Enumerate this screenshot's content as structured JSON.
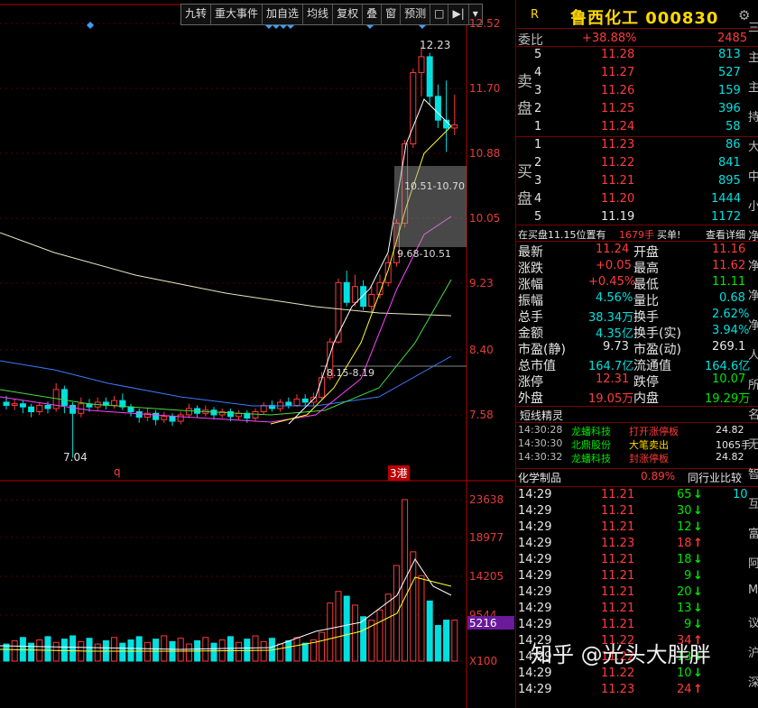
{
  "toolbar": {
    "buttons": [
      "九转",
      "重大事件",
      "加自选",
      "均线",
      "复权",
      "叠",
      "窗",
      "预测"
    ]
  },
  "price_axis": [
    "12.52",
    "11.70",
    "10.88",
    "10.05",
    "9.23",
    "8.40",
    "7.58"
  ],
  "volume_axis": [
    "23638",
    "18977",
    "14205",
    "9544",
    "5216",
    "X100"
  ],
  "annotations": {
    "high": "12.23",
    "low": "7.04",
    "range1": "10.51-10.70",
    "range2": "9.68-10.51",
    "range3": "8.15-8.19",
    "marker_q": "q",
    "marker_gang": "3港"
  },
  "stock": {
    "badge": "R",
    "name": "鲁西化工",
    "code": "000830"
  },
  "weibi": {
    "label": "委比",
    "pct": "+38.88%",
    "value": "2485"
  },
  "sell": {
    "label1": "卖",
    "label2": "盘",
    "rows": [
      {
        "lvl": "5",
        "price": "11.28",
        "vol": "813"
      },
      {
        "lvl": "4",
        "price": "11.27",
        "vol": "527"
      },
      {
        "lvl": "3",
        "price": "11.26",
        "vol": "159"
      },
      {
        "lvl": "2",
        "price": "11.25",
        "vol": "396"
      },
      {
        "lvl": "1",
        "price": "11.24",
        "vol": "58"
      }
    ]
  },
  "buy": {
    "label1": "买",
    "label2": "盘",
    "rows": [
      {
        "lvl": "1",
        "price": "11.23",
        "vol": "86"
      },
      {
        "lvl": "2",
        "price": "11.22",
        "vol": "841"
      },
      {
        "lvl": "3",
        "price": "11.21",
        "vol": "895"
      },
      {
        "lvl": "4",
        "price": "11.20",
        "vol": "1444"
      },
      {
        "lvl": "5",
        "price": "11.19",
        "vol": "1172"
      }
    ]
  },
  "order_note": {
    "text": "在买盘11.15位置有",
    "qty": "1679手",
    "side": "买单!",
    "link": "查看详细"
  },
  "stats": [
    {
      "l": "最新",
      "v": "11.24",
      "vc": "red",
      "l2": "开盘",
      "v2": "11.16",
      "v2c": "red"
    },
    {
      "l": "涨跌",
      "v": "+0.05",
      "vc": "red",
      "l2": "最高",
      "v2": "11.62",
      "v2c": "red"
    },
    {
      "l": "涨幅",
      "v": "+0.45%",
      "vc": "red",
      "l2": "最低",
      "v2": "11.11",
      "v2c": "grn"
    },
    {
      "l": "振幅",
      "v": "4.56%",
      "vc": "cyn",
      "l2": "量比",
      "v2": "0.68",
      "v2c": "cyn"
    },
    {
      "l": "总手",
      "v": "38.34万",
      "vc": "cyn",
      "l2": "换手",
      "v2": "2.62%",
      "v2c": "cyn"
    },
    {
      "l": "金额",
      "v": "4.35亿",
      "vc": "cyn",
      "l2": "换手(实)",
      "v2": "3.94%",
      "v2c": "cyn"
    },
    {
      "l": "市盈(静)",
      "v": "9.73",
      "vc": "wht",
      "l2": "市盈(动)",
      "v2": "269.1",
      "v2c": "wht"
    },
    {
      "l": "总市值",
      "v": "164.7亿",
      "vc": "cyn",
      "l2": "流通值",
      "v2": "164.6亿",
      "v2c": "cyn"
    },
    {
      "l": "涨停",
      "v": "12.31",
      "vc": "red",
      "l2": "跌停",
      "v2": "10.07",
      "v2c": "grn"
    },
    {
      "l": "外盘",
      "v": "19.05万",
      "vc": "red",
      "l2": "内盘",
      "v2": "19.29万",
      "v2c": "grn"
    }
  ],
  "short_title": "短线精灵",
  "short_list": [
    {
      "t": "14:30:28",
      "name": "龙蟠科技",
      "evt": "打开涨停板",
      "val": "24.82",
      "ec": "red"
    },
    {
      "t": "14:30:30",
      "name": "北鼎股份",
      "evt": "大笔卖出",
      "val": "1065手",
      "ec": "yel"
    },
    {
      "t": "14:30:32",
      "name": "龙蟠科技",
      "evt": "封涨停板",
      "val": "24.82",
      "ec": "red"
    }
  ],
  "industry": {
    "name": "化学制品",
    "pct": "0.89%",
    "compare": "同行业比较"
  },
  "ticks": [
    {
      "t": "14:29",
      "p": "11.21",
      "pc": "red",
      "v": "65",
      "d": "down",
      "x": "10"
    },
    {
      "t": "14:29",
      "p": "11.21",
      "pc": "red",
      "v": "30",
      "d": "down",
      "x": ""
    },
    {
      "t": "14:29",
      "p": "11.21",
      "pc": "red",
      "v": "12",
      "d": "down",
      "x": ""
    },
    {
      "t": "14:29",
      "p": "11.23",
      "pc": "red",
      "v": "18",
      "d": "up",
      "x": ""
    },
    {
      "t": "14:29",
      "p": "11.21",
      "pc": "red",
      "v": "18",
      "d": "down",
      "x": ""
    },
    {
      "t": "14:29",
      "p": "11.21",
      "pc": "red",
      "v": "9",
      "d": "down",
      "x": ""
    },
    {
      "t": "14:29",
      "p": "11.21",
      "pc": "red",
      "v": "20",
      "d": "down",
      "x": ""
    },
    {
      "t": "14:29",
      "p": "11.21",
      "pc": "red",
      "v": "13",
      "d": "down",
      "x": ""
    },
    {
      "t": "14:29",
      "p": "11.21",
      "pc": "red",
      "v": "9",
      "d": "down",
      "x": ""
    },
    {
      "t": "14:29",
      "p": "11.22",
      "pc": "red",
      "v": "34",
      "d": "up",
      "x": ""
    },
    {
      "t": "14:29",
      "p": "11.22",
      "pc": "red",
      "v": "13",
      "d": "down",
      "x": ""
    },
    {
      "t": "14:29",
      "p": "11.22",
      "pc": "red",
      "v": "10",
      "d": "down",
      "x": ""
    },
    {
      "t": "14:29",
      "p": "11.23",
      "pc": "red",
      "v": "24",
      "d": "up",
      "x": ""
    }
  ],
  "side_chars": [
    "三",
    "主",
    "主",
    "持",
    "大",
    "中",
    "小",
    "净",
    "净",
    "净",
    "净",
    "人",
    "所",
    "名",
    "无",
    "智",
    "互",
    "富",
    "阿",
    "M",
    "议",
    "沪",
    "深"
  ],
  "watermark": "知乎 @光头大胖胖"
}
